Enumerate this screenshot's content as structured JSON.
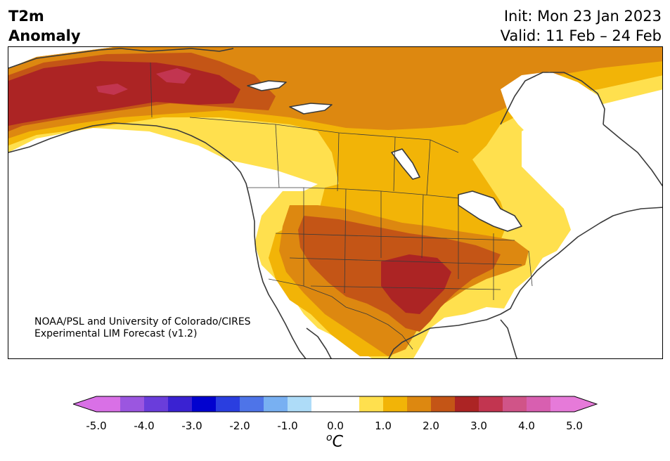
{
  "title": {
    "variable_line1": "T2m",
    "variable_line2": "Anomaly",
    "init": "Init: Mon 23 Jan 2023",
    "valid": "Valid: 11 Feb – 24 Feb"
  },
  "credit": {
    "line1": "NOAA/PSL and University of Colorado/CIRES",
    "line2": "Experimental LIM Forecast (v1.2)"
  },
  "colorbar": {
    "unit_symbol": "o",
    "unit_letter": "C",
    "ticks": [
      "-5.0",
      "-4.0",
      "-3.0",
      "-2.0",
      "-1.0",
      "0.0",
      "1.0",
      "2.0",
      "3.0",
      "4.0",
      "5.0"
    ],
    "under_color": "#d970e6",
    "over_color": "#e67ad9",
    "colors": [
      "#d970e6",
      "#9b56e0",
      "#6a3ddb",
      "#3a22d2",
      "#0202cf",
      "#2a3ee0",
      "#4e74e8",
      "#78b0f2",
      "#aedcf8",
      "#ffffff",
      "#ffffff",
      "#ffe04e",
      "#f2b407",
      "#dd8810",
      "#c45516",
      "#ac2424",
      "#c23550",
      "#d05488",
      "#d85fb0",
      "#e67ad9"
    ]
  },
  "map_colors": {
    "c0": "#ffe04e",
    "c1": "#f2b407",
    "c2": "#dd8810",
    "c3": "#c45516",
    "c4": "#ac2424",
    "c5": "#c23550",
    "line": "#3a3a3a"
  }
}
